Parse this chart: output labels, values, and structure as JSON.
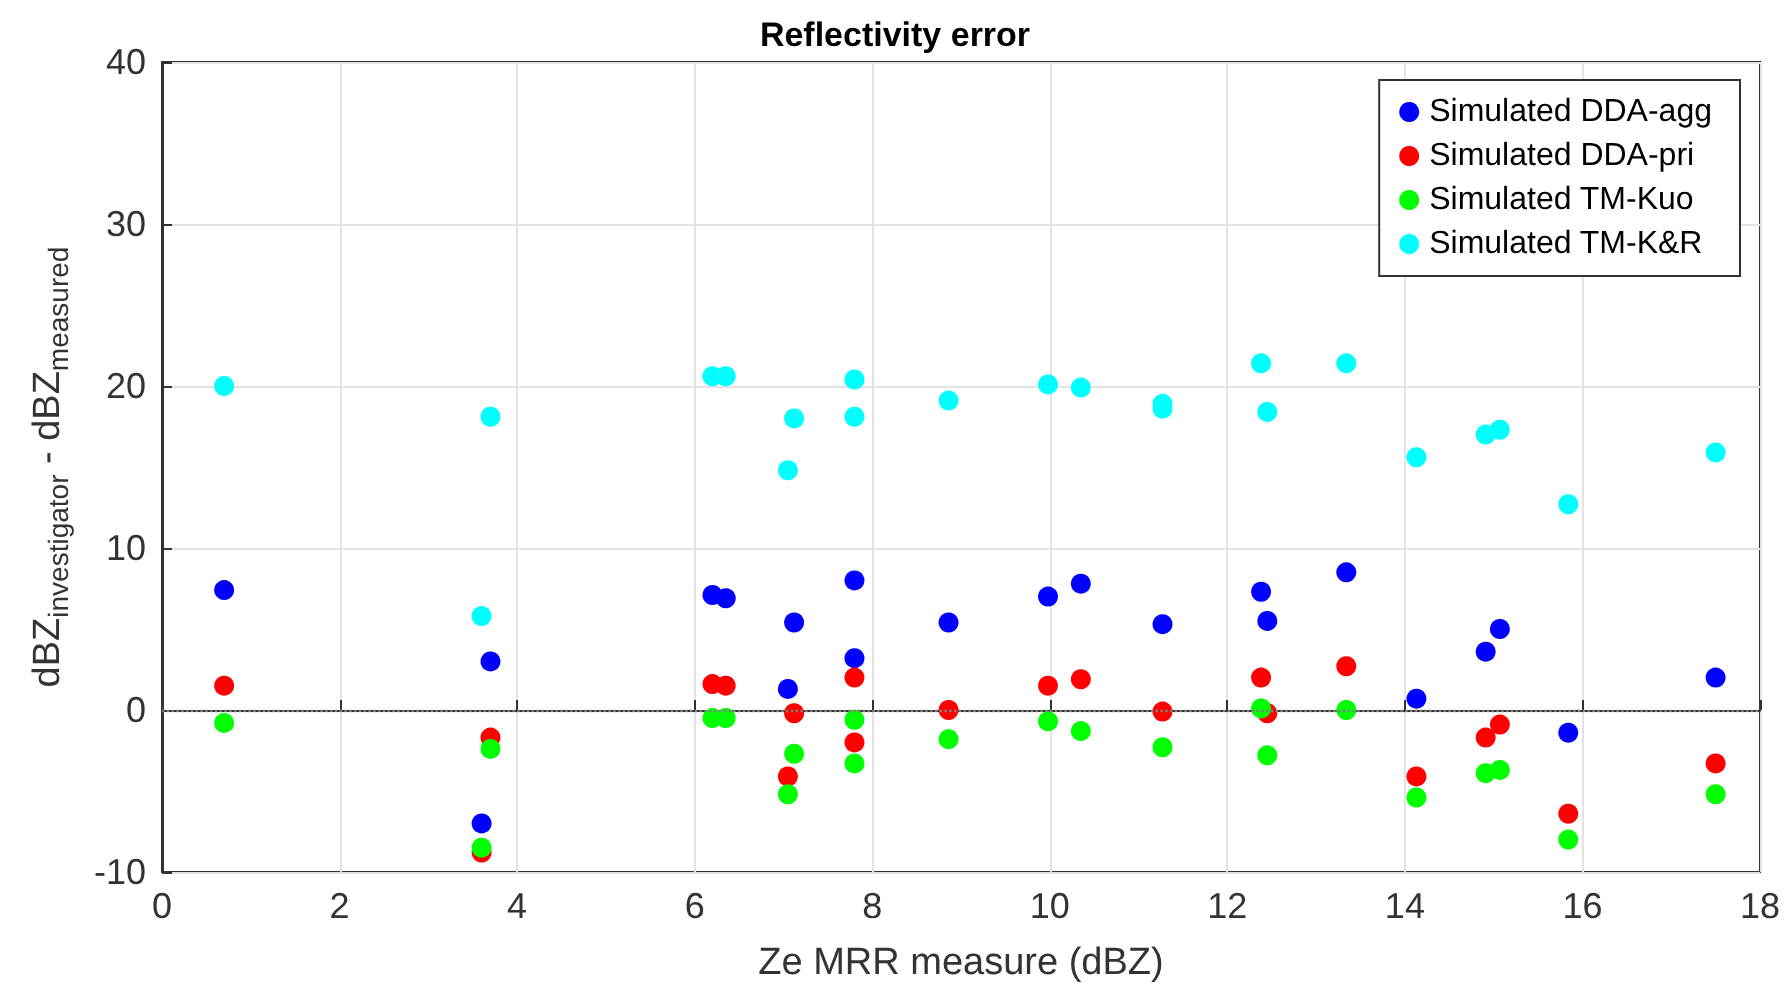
{
  "chart_data": {
    "type": "scatter",
    "title": "Reflectivity error",
    "xlabel": "Ze MRR measure (dBZ)",
    "ylabel": "dBZ$_{investigator}$ - dBZ$_{measured}$",
    "x": [
      0.7,
      3.6,
      3.7,
      6.2,
      6.35,
      7.05,
      7.12,
      7.8,
      7.8,
      8.86,
      9.98,
      10.35,
      11.27,
      11.27,
      12.38,
      12.45,
      13.34,
      14.13,
      14.91,
      15.07,
      15.84,
      17.5
    ],
    "series": [
      {
        "name": "Simulated DDA-agg",
        "color": "#0000ff",
        "values": [
          7.4,
          -7.0,
          3.0,
          7.1,
          6.9,
          1.3,
          5.4,
          8.0,
          3.2,
          5.4,
          7.0,
          7.8,
          5.3,
          null,
          7.3,
          5.5,
          8.5,
          0.7,
          3.6,
          5.0,
          -1.4,
          2.0
        ]
      },
      {
        "name": "Simulated DDA-pri",
        "color": "#ff0000",
        "values": [
          1.5,
          -8.8,
          -1.7,
          1.6,
          1.5,
          -4.1,
          -0.2,
          2.0,
          -2.0,
          0.0,
          1.5,
          1.9,
          -0.1,
          null,
          2.0,
          -0.2,
          2.7,
          -4.1,
          -1.7,
          -0.9,
          -6.4,
          -3.3
        ]
      },
      {
        "name": "Simulated TM-Kuo",
        "color": "#00ff00",
        "values": [
          -0.8,
          -8.5,
          -2.4,
          -0.5,
          -0.5,
          -5.2,
          -2.7,
          -0.6,
          -3.3,
          -1.8,
          -0.7,
          -1.3,
          -2.3,
          null,
          0.1,
          -2.8,
          0.0,
          -5.4,
          -3.9,
          -3.7,
          -8.0,
          -5.2
        ]
      },
      {
        "name": "Simulated TM-K&R",
        "color": "#00ffff",
        "values": [
          20.0,
          5.8,
          18.1,
          20.6,
          20.6,
          14.8,
          18.0,
          20.4,
          18.1,
          19.1,
          20.1,
          19.9,
          18.9,
          18.6,
          21.4,
          18.4,
          21.4,
          15.6,
          17.0,
          17.3,
          12.7,
          15.9
        ]
      }
    ],
    "xlim": [
      0,
      18
    ],
    "xticks": [
      0,
      2,
      4,
      6,
      8,
      10,
      12,
      14,
      16,
      18
    ],
    "ylim": [
      -10,
      40
    ],
    "yticks": [
      -10,
      0,
      10,
      20,
      30,
      40
    ],
    "ref_lines": [
      {
        "axis": "y",
        "value": 0,
        "label": null,
        "color": "#808080",
        "line_style": "dotted"
      }
    ],
    "grid": true,
    "legend": "top right",
    "marker": "circle"
  }
}
